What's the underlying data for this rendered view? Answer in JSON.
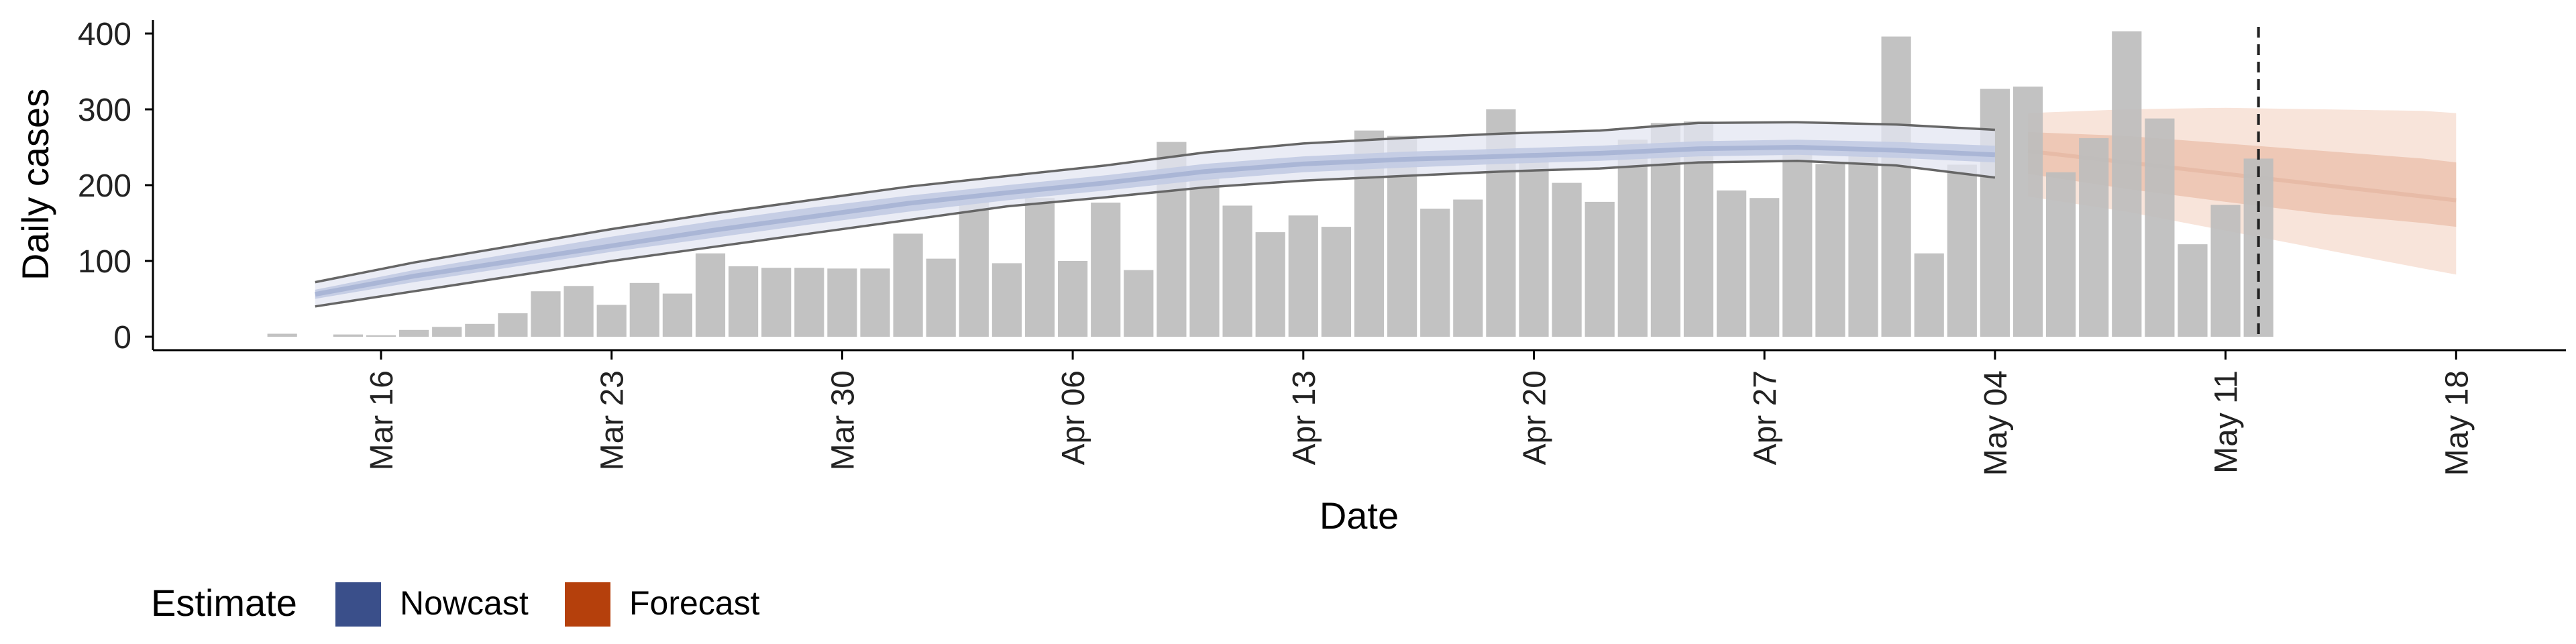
{
  "chart_data": {
    "type": "bar",
    "title": "",
    "xlabel": "Date",
    "ylabel": "Daily cases",
    "ylim": [
      0,
      420
    ],
    "xlim": [
      "2020-03-10",
      "2020-05-20"
    ],
    "y_ticks": [
      0,
      100,
      200,
      300,
      400
    ],
    "x_ticks": [
      {
        "date": "2020-03-16",
        "label": "Mar 16"
      },
      {
        "date": "2020-03-23",
        "label": "Mar 23"
      },
      {
        "date": "2020-03-30",
        "label": "Mar 30"
      },
      {
        "date": "2020-04-06",
        "label": "Apr 06"
      },
      {
        "date": "2020-04-13",
        "label": "Apr 13"
      },
      {
        "date": "2020-04-20",
        "label": "Apr 20"
      },
      {
        "date": "2020-04-27",
        "label": "Apr 27"
      },
      {
        "date": "2020-05-04",
        "label": "May 04"
      },
      {
        "date": "2020-05-11",
        "label": "May 11"
      },
      {
        "date": "2020-05-18",
        "label": "May 18"
      }
    ],
    "grid": false,
    "legend": {
      "title": "Estimate",
      "position": "bottom-left",
      "entries": [
        {
          "label": "Nowcast",
          "color": "#3a4f8a"
        },
        {
          "label": "Forecast",
          "color": "#b5400c"
        }
      ]
    },
    "colors": {
      "bars": "#bdbdbd",
      "nowcast_band_outer": "#e3e6f2",
      "nowcast_band_inner": "#c2cbe3",
      "nowcast_bounds": "#666666",
      "forecast_band_outer": "#f8e4da",
      "forecast_band_inner": "#eec8b6",
      "vline": "#222222"
    },
    "observed": {
      "dates": [
        "2020-03-13",
        "2020-03-15",
        "2020-03-16",
        "2020-03-17",
        "2020-03-18",
        "2020-03-19",
        "2020-03-20",
        "2020-03-21",
        "2020-03-22",
        "2020-03-23",
        "2020-03-24",
        "2020-03-25",
        "2020-03-26",
        "2020-03-27",
        "2020-03-28",
        "2020-03-29",
        "2020-03-30",
        "2020-03-31",
        "2020-04-01",
        "2020-04-02",
        "2020-04-03",
        "2020-04-04",
        "2020-04-05",
        "2020-04-06",
        "2020-04-07",
        "2020-04-08",
        "2020-04-09",
        "2020-04-10",
        "2020-04-11",
        "2020-04-12",
        "2020-04-13",
        "2020-04-14",
        "2020-04-15",
        "2020-04-16",
        "2020-04-17",
        "2020-04-18",
        "2020-04-19",
        "2020-04-20",
        "2020-04-21",
        "2020-04-22",
        "2020-04-23",
        "2020-04-24",
        "2020-04-25",
        "2020-04-26",
        "2020-04-27",
        "2020-04-28",
        "2020-04-29",
        "2020-04-30",
        "2020-05-01",
        "2020-05-02",
        "2020-05-03",
        "2020-05-04",
        "2020-05-05",
        "2020-05-06",
        "2020-05-07",
        "2020-05-08",
        "2020-05-09",
        "2020-05-10",
        "2020-05-11",
        "2020-05-12"
      ],
      "values": [
        4,
        3,
        2,
        9,
        13,
        17,
        31,
        60,
        67,
        42,
        71,
        57,
        110,
        93,
        91,
        91,
        90,
        90,
        136,
        103,
        181,
        97,
        183,
        100,
        177,
        88,
        257,
        210,
        173,
        138,
        160,
        145,
        272,
        265,
        169,
        181,
        300,
        238,
        203,
        178,
        260,
        282,
        284,
        193,
        183,
        247,
        228,
        245,
        396,
        110,
        227,
        327,
        330,
        217,
        262,
        403,
        288,
        122,
        174,
        235
      ]
    },
    "nowcast": {
      "dates": [
        "2020-03-14",
        "2020-03-17",
        "2020-03-20",
        "2020-03-23",
        "2020-03-26",
        "2020-03-29",
        "2020-04-01",
        "2020-04-04",
        "2020-04-07",
        "2020-04-10",
        "2020-04-13",
        "2020-04-16",
        "2020-04-19",
        "2020-04-22",
        "2020-04-25",
        "2020-04-28",
        "2020-05-01",
        "2020-05-04"
      ],
      "upper": [
        72,
        98,
        120,
        142,
        162,
        180,
        198,
        212,
        226,
        243,
        255,
        262,
        268,
        272,
        282,
        283,
        280,
        273
      ],
      "inner_upper": [
        62,
        88,
        110,
        132,
        152,
        170,
        186,
        200,
        213,
        228,
        238,
        244,
        248,
        252,
        258,
        260,
        257,
        252
      ],
      "median": [
        56,
        80,
        100,
        120,
        140,
        158,
        176,
        190,
        203,
        218,
        228,
        234,
        238,
        242,
        248,
        250,
        246,
        240
      ],
      "inner_lower": [
        50,
        72,
        92,
        112,
        130,
        148,
        165,
        180,
        193,
        207,
        217,
        223,
        228,
        232,
        238,
        240,
        236,
        230
      ],
      "lower": [
        40,
        60,
        80,
        100,
        118,
        136,
        154,
        172,
        184,
        197,
        206,
        212,
        218,
        222,
        230,
        232,
        226,
        210
      ]
    },
    "forecast": {
      "dates": [
        "2020-05-05",
        "2020-05-08",
        "2020-05-11",
        "2020-05-14",
        "2020-05-17",
        "2020-05-18"
      ],
      "upper": [
        295,
        300,
        302,
        300,
        298,
        295
      ],
      "inner_upper": [
        270,
        265,
        255,
        245,
        235,
        230
      ],
      "median": [
        245,
        230,
        215,
        200,
        185,
        180
      ],
      "inner_lower": [
        215,
        195,
        178,
        162,
        150,
        145
      ],
      "lower": [
        185,
        165,
        140,
        115,
        90,
        82
      ]
    },
    "vline_date": "2020-05-12"
  }
}
